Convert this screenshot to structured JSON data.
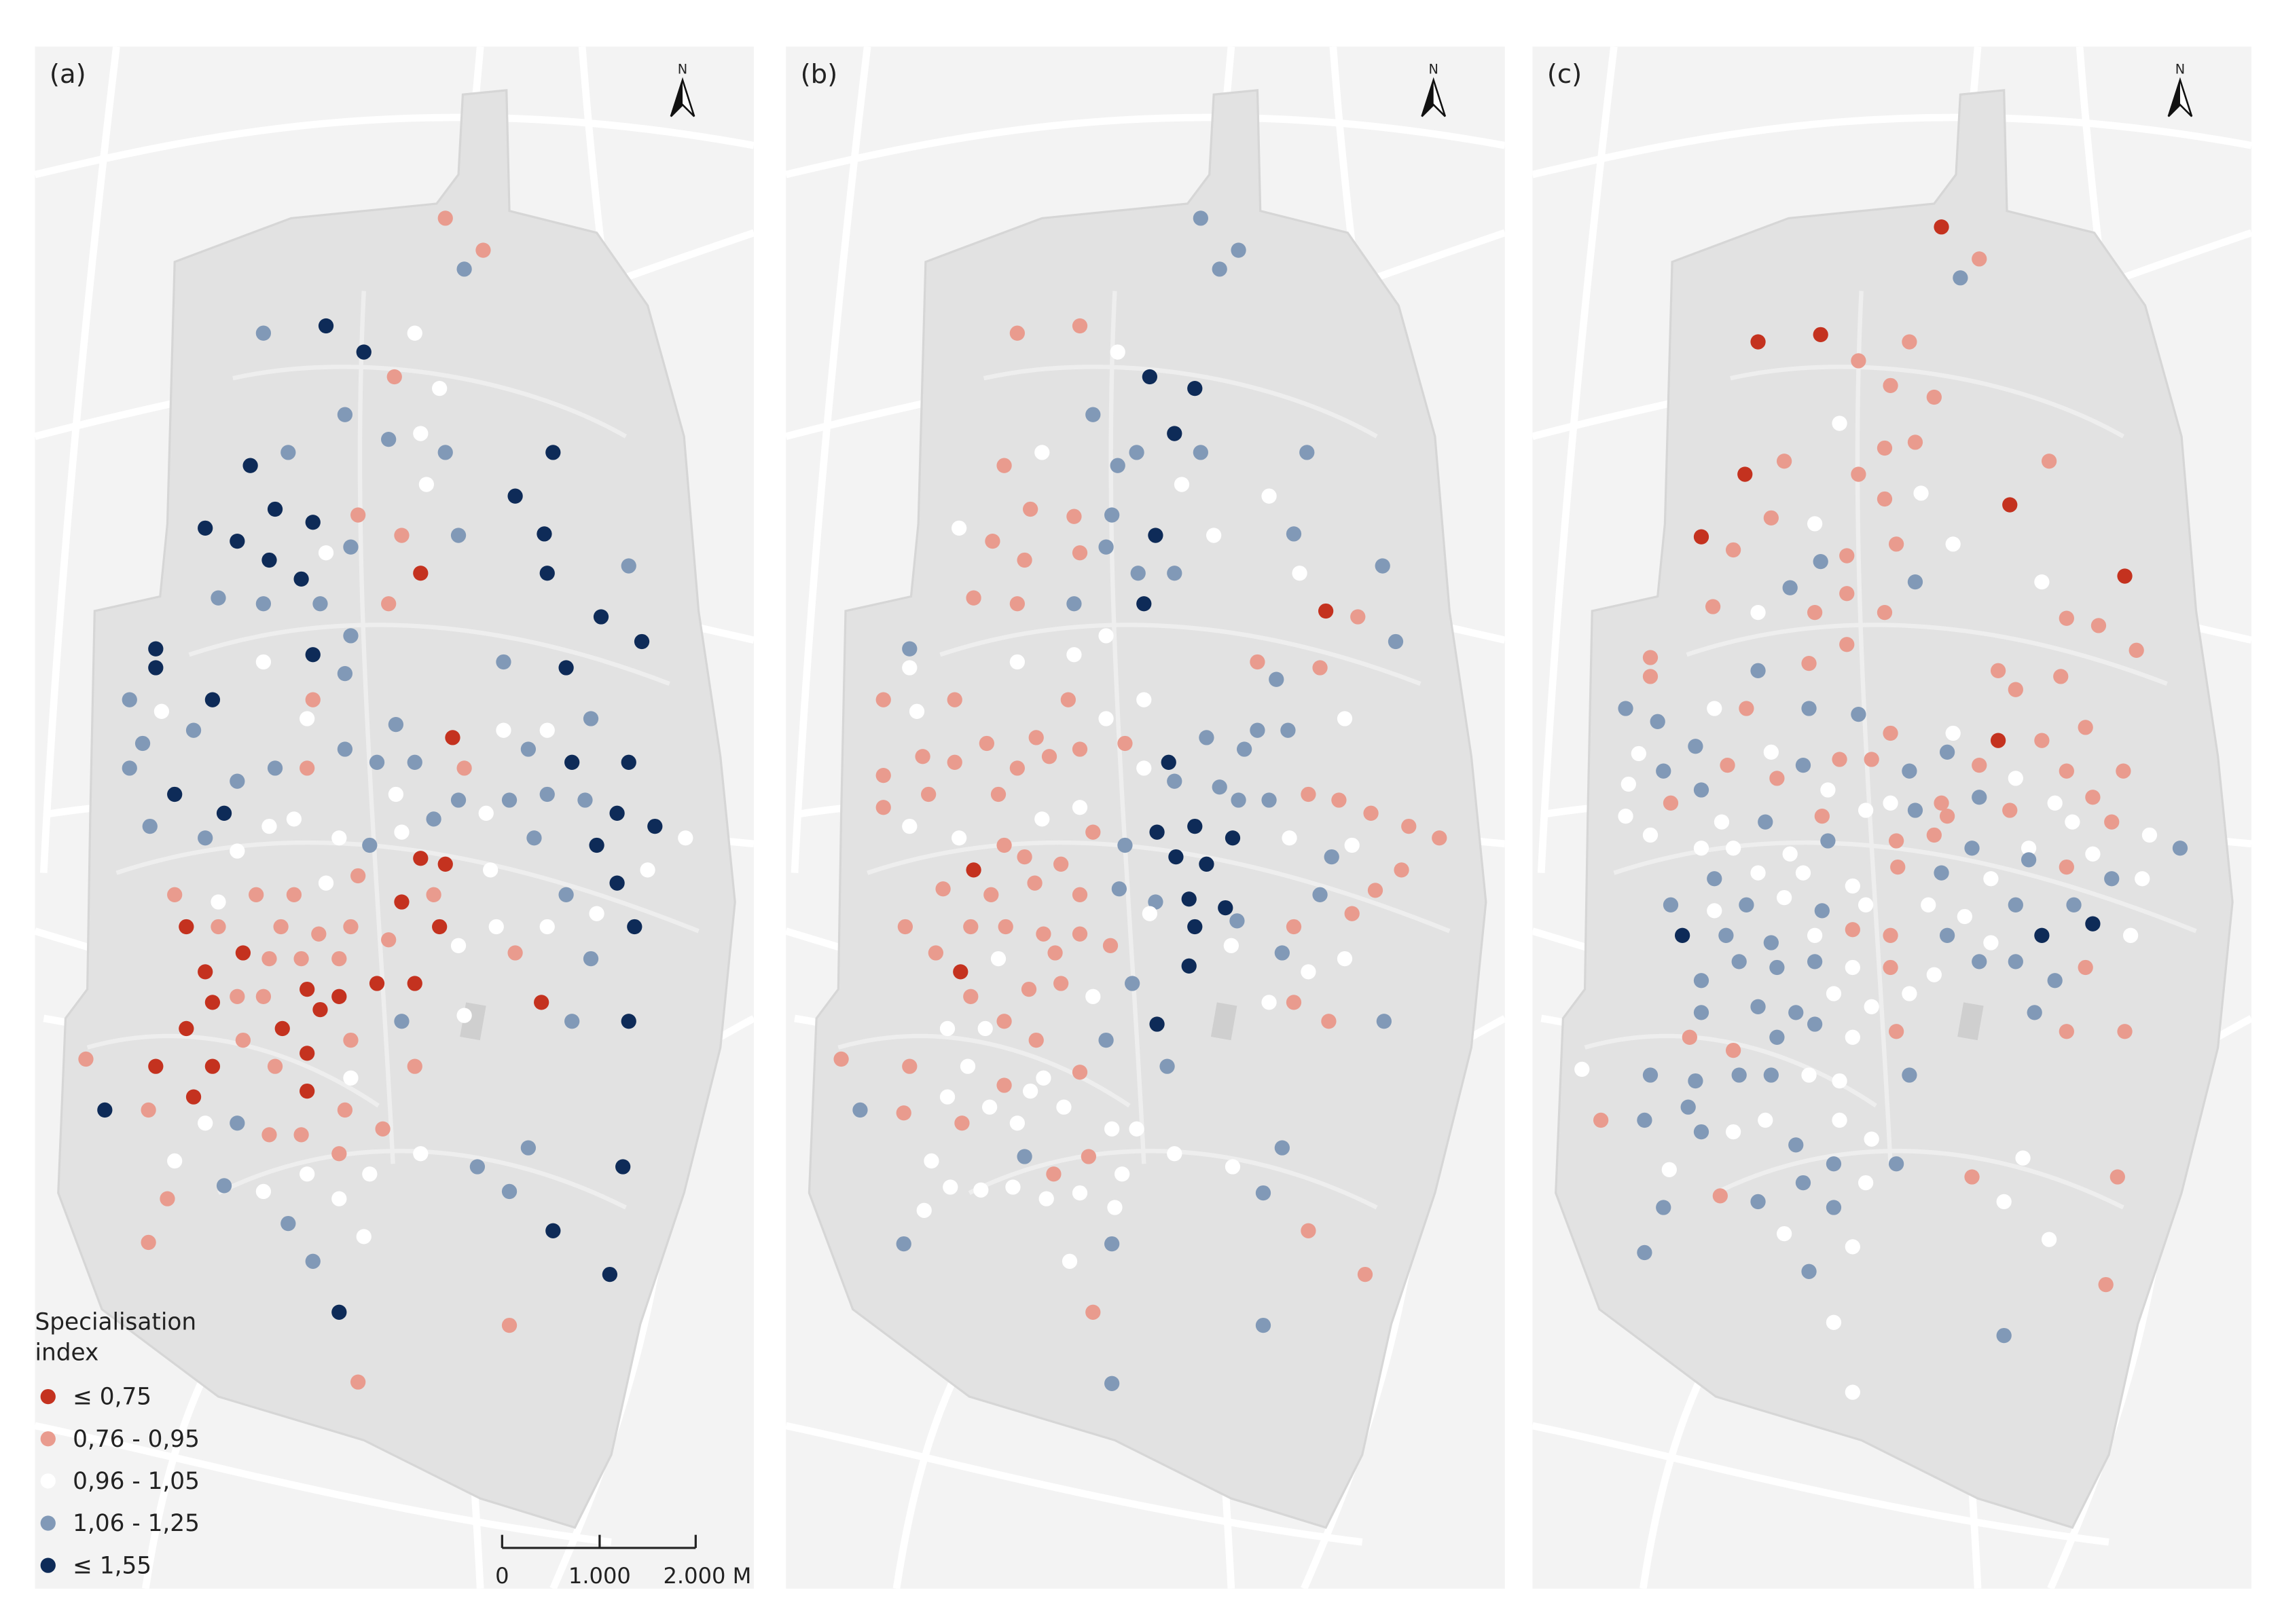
{
  "panels": [
    {
      "label": "(a)",
      "north": "N"
    },
    {
      "label": "(b)",
      "north": "N"
    },
    {
      "label": "(c)",
      "north": "N"
    }
  ],
  "legend": {
    "title": "Specialisation index",
    "items": [
      {
        "label": "≤ 0,75",
        "color": "#c4321f"
      },
      {
        "label": "0,76 - 0,95",
        "color": "#e99b8e"
      },
      {
        "label": "0,96 - 1,05",
        "color": "#ffffff"
      },
      {
        "label": "1,06 - 1,25",
        "color": "#8199b7"
      },
      {
        "label": "≤ 1,55",
        "color": "#0e2b58"
      }
    ]
  },
  "scale_bar": {
    "labels": [
      "0",
      "1.000",
      "2.000 M"
    ]
  }
}
